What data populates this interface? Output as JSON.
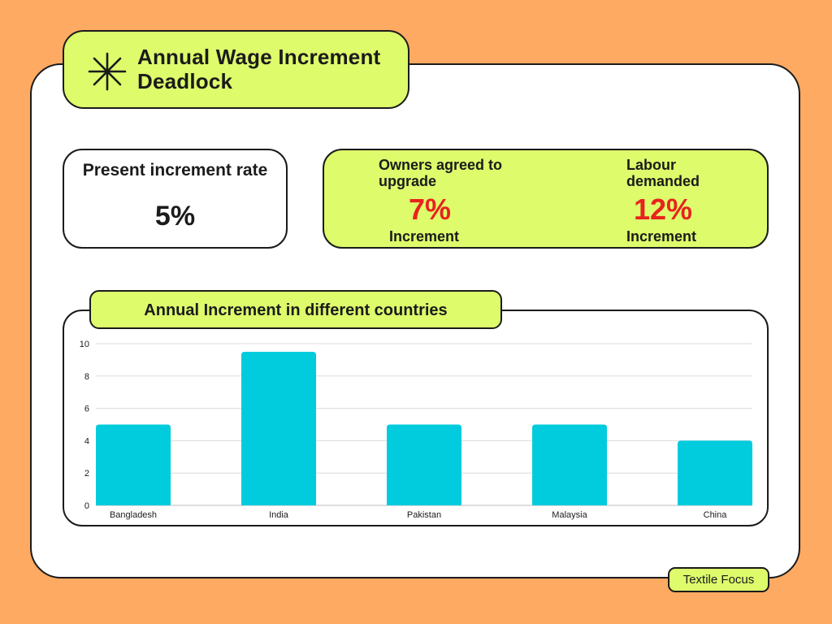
{
  "header": {
    "title": "Annual Wage Increment Deadlock",
    "icon": "asterisk-icon"
  },
  "present": {
    "label": "Present increment rate",
    "value": "5%"
  },
  "owners": {
    "label": "Owners agreed to upgrade",
    "value": "7%",
    "sub": "Increment"
  },
  "labour": {
    "label": "Labour demanded",
    "value": "12%",
    "sub": "Increment"
  },
  "colors": {
    "background": "#FFAA62",
    "accent": "#DDFB6B",
    "highlight": "#E8231E",
    "bar": "#00CCDD"
  },
  "chart_data": {
    "type": "bar",
    "title": "Annual Increment in different countries",
    "categories": [
      "Bangladesh",
      "India",
      "Pakistan",
      "Malaysia",
      "China"
    ],
    "values": [
      5,
      9.5,
      5,
      5,
      4
    ],
    "ylim": [
      0,
      10
    ],
    "yticks": [
      0,
      2,
      4,
      6,
      8,
      10
    ],
    "xlabel": "",
    "ylabel": "",
    "grid": true
  },
  "footer": {
    "brand": "Textile Focus"
  }
}
